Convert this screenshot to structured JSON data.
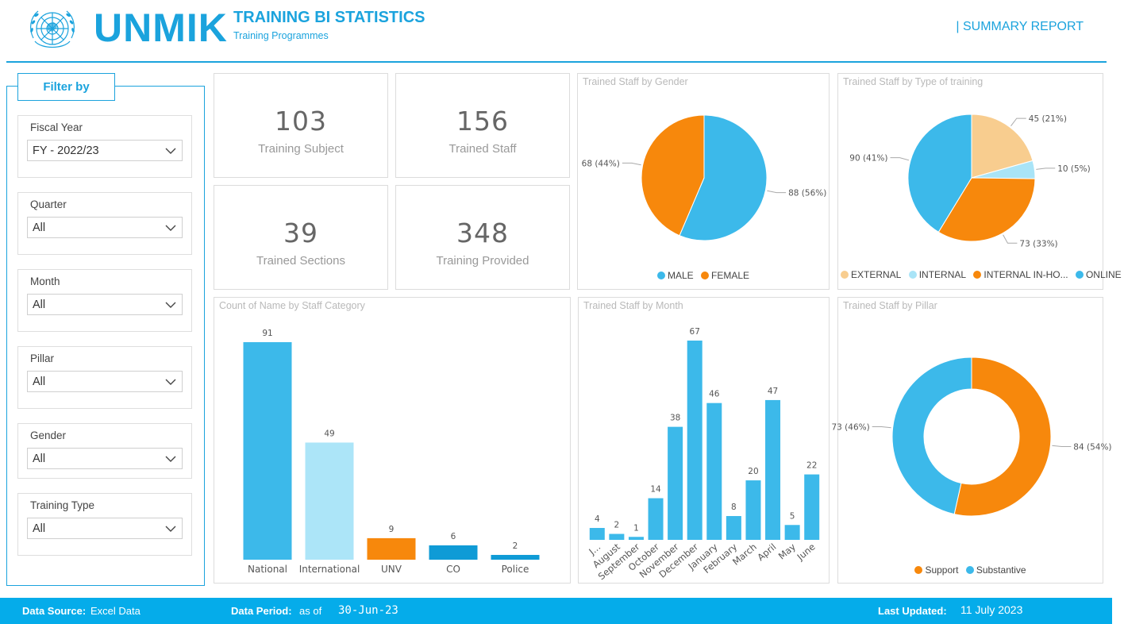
{
  "header": {
    "logo_text": "UNMIK",
    "title": "TRAINING BI STATISTICS",
    "subtitle": "Training Programmes",
    "report_link": "| SUMMARY REPORT"
  },
  "filters": {
    "title": "Filter by",
    "fiscal_year": {
      "label": "Fiscal Year",
      "value": "FY - 2022/23"
    },
    "quarter": {
      "label": "Quarter",
      "value": "All"
    },
    "month": {
      "label": "Month",
      "value": "All"
    },
    "pillar": {
      "label": "Pillar",
      "value": "All"
    },
    "gender": {
      "label": "Gender",
      "value": "All"
    },
    "training_type": {
      "label": "Training Type",
      "value": "All"
    }
  },
  "kpis": {
    "training_subject": {
      "value": "103",
      "label": "Training Subject"
    },
    "trained_staff": {
      "value": "156",
      "label": "Trained Staff"
    },
    "trained_sections": {
      "value": "39",
      "label": "Trained Sections"
    },
    "training_provided": {
      "value": "348",
      "label": "Training Provided"
    }
  },
  "chart_data": [
    {
      "id": "gender",
      "type": "pie",
      "title": "Trained Staff by Gender",
      "slices": [
        {
          "name": "MALE",
          "value": 88,
          "label": "88 (56%)",
          "color": "#3cb9ea"
        },
        {
          "name": "FEMALE",
          "value": 68,
          "label": "68 (44%)",
          "color": "#f7880c"
        }
      ],
      "legend": "bottom"
    },
    {
      "id": "type",
      "type": "pie",
      "title": "Trained Staff by Type of training",
      "slices": [
        {
          "name": "EXTERNAL",
          "value": 45,
          "label": "45 (21%)",
          "color": "#f8cd8f"
        },
        {
          "name": "INTERNAL",
          "value": 10,
          "label": "10 (5%)",
          "color": "#a9e4f7"
        },
        {
          "name": "INTERNAL IN-HO...",
          "value": 73,
          "label": "73 (33%)",
          "color": "#f7880c"
        },
        {
          "name": "ONLINE",
          "value": 90,
          "label": "90 (41%)",
          "color": "#3cb9ea"
        }
      ],
      "legend": "bottom"
    },
    {
      "id": "category",
      "type": "bar",
      "title": "Count of Name by Staff Category",
      "categories": [
        "National",
        "International",
        "UNV",
        "CO",
        "Police"
      ],
      "values": [
        91,
        49,
        9,
        6,
        2
      ],
      "colors": [
        "#3cb9ea",
        "#ace5f8",
        "#f7880c",
        "#0f9bd6",
        "#0f9bd6"
      ],
      "ylim": [
        0,
        91
      ]
    },
    {
      "id": "month",
      "type": "bar",
      "title": "Trained Staff by Month",
      "categories": [
        "J...",
        "August",
        "September",
        "October",
        "November",
        "December",
        "January",
        "February",
        "March",
        "April",
        "May",
        "June"
      ],
      "values": [
        4,
        2,
        1,
        14,
        38,
        67,
        46,
        8,
        20,
        47,
        5,
        22
      ],
      "color": "#3cb9ea",
      "ylim": [
        0,
        67
      ]
    },
    {
      "id": "pillar",
      "type": "pie",
      "donut": true,
      "title": "Trained Staff by Pillar",
      "slices": [
        {
          "name": "Support",
          "value": 84,
          "label": "84 (54%)",
          "color": "#f7880c"
        },
        {
          "name": "Substantive",
          "value": 73,
          "label": "73 (46%)",
          "color": "#3cb9ea"
        }
      ],
      "legend": "bottom"
    }
  ],
  "footer": {
    "source_label": "Data Source:",
    "source_value": "Excel Data",
    "period_label": "Data Period:",
    "period_prefix": "as of",
    "period_value": "30-Jun-23",
    "updated_label": "Last Updated:",
    "updated_value": "11 July 2023"
  }
}
